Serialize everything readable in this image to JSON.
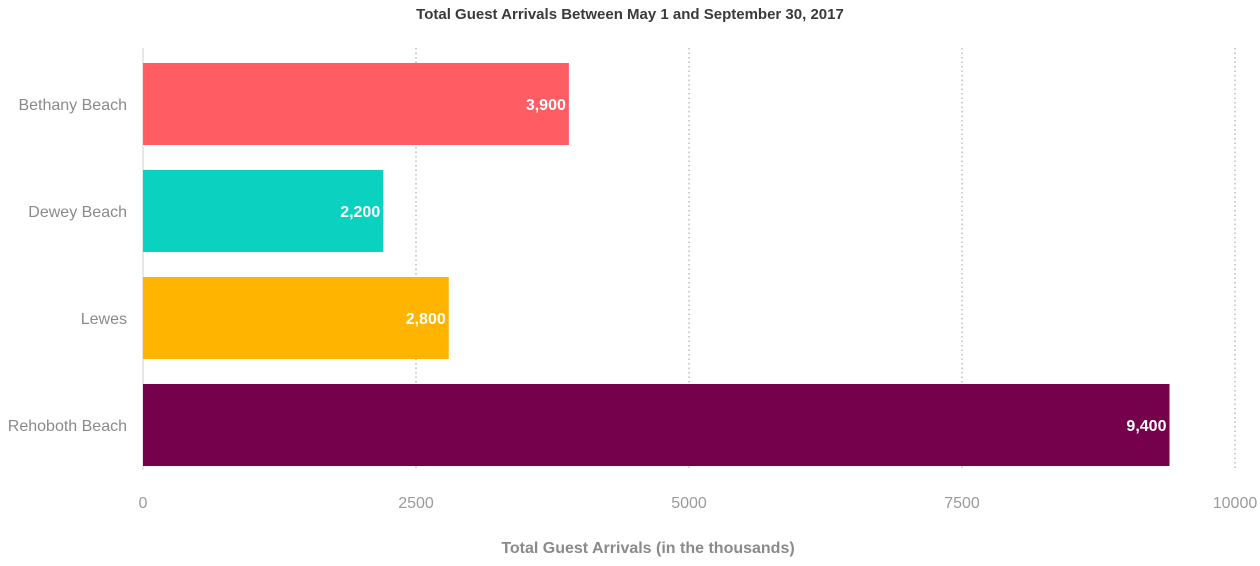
{
  "chart_data": {
    "type": "bar",
    "orientation": "horizontal",
    "title": "Total Guest Arrivals Between May 1 and September 30, 2017",
    "xlabel": "Total Guest Arrivals (in the thousands)",
    "ylabel": "",
    "categories": [
      "Bethany Beach",
      "Dewey Beach",
      "Lewes",
      "Rehoboth Beach"
    ],
    "values": [
      3900,
      2200,
      2800,
      9400
    ],
    "value_labels": [
      "3,900",
      "2,200",
      "2,800",
      "9,400"
    ],
    "colors": [
      "#ff5c63",
      "#0bd1c1",
      "#ffb400",
      "#75004b"
    ],
    "xlim": [
      0,
      10000
    ],
    "xticks": [
      0,
      2500,
      5000,
      7500,
      10000
    ],
    "xtick_labels": [
      "0",
      "2500",
      "5000",
      "7500",
      "10000"
    ],
    "grid": "vertical dotted",
    "legend": "none"
  }
}
